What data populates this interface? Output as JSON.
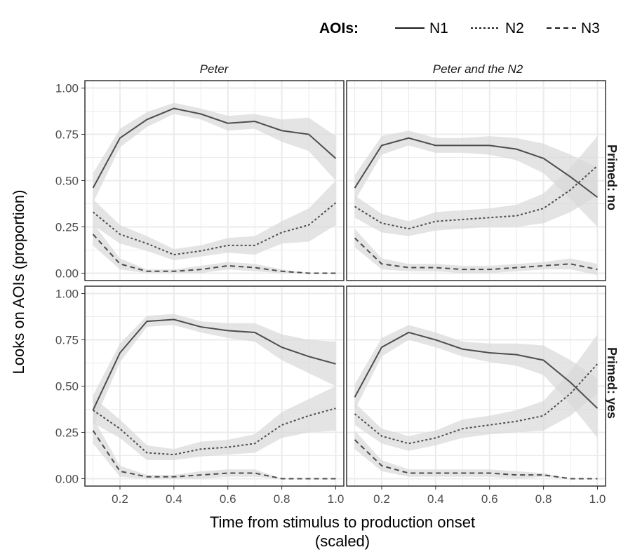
{
  "chart_data": {
    "type": "line",
    "facet_columns": [
      "Peter",
      "Peter and the N2"
    ],
    "facet_rows": [
      "Primed: no",
      "Primed: yes"
    ],
    "xlabel_lines": [
      "Time from stimulus to production onset",
      "(scaled)"
    ],
    "ylabel": "Looks on AOIs (proportion)",
    "x_ticks": [
      "0.2",
      "0.4",
      "0.6",
      "0.8",
      "1.0"
    ],
    "y_ticks": [
      "0.00",
      "0.25",
      "0.50",
      "0.75",
      "1.00"
    ],
    "xlim": [
      0.07,
      1.03
    ],
    "ylim": [
      -0.04,
      1.04
    ],
    "grid": true,
    "legend": {
      "title": "AOIs:",
      "placement": "top-right",
      "entries": [
        {
          "name": "N1",
          "dash": "solid"
        },
        {
          "name": "N2",
          "dash": "dotted"
        },
        {
          "name": "N3",
          "dash": "dashed"
        }
      ]
    },
    "colors": {
      "line": "#4d4d4d",
      "ribbon": "#d9d9d9",
      "grid": "#ebebeb",
      "panel_border": "#333333"
    },
    "x": [
      0.1,
      0.2,
      0.3,
      0.4,
      0.5,
      0.6,
      0.7,
      0.8,
      0.9,
      1.0
    ],
    "panels": [
      {
        "row": 0,
        "col": 0,
        "series": [
          {
            "name": "N1",
            "values": [
              0.46,
              0.73,
              0.83,
              0.89,
              0.86,
              0.81,
              0.82,
              0.77,
              0.75,
              0.62
            ],
            "ci": [
              0.08,
              0.05,
              0.04,
              0.03,
              0.03,
              0.04,
              0.04,
              0.06,
              0.09,
              0.12
            ]
          },
          {
            "name": "N2",
            "values": [
              0.33,
              0.21,
              0.16,
              0.1,
              0.12,
              0.15,
              0.15,
              0.22,
              0.26,
              0.38
            ],
            "ci": [
              0.07,
              0.05,
              0.04,
              0.03,
              0.03,
              0.04,
              0.05,
              0.06,
              0.09,
              0.12
            ]
          },
          {
            "name": "N3",
            "values": [
              0.21,
              0.05,
              0.01,
              0.01,
              0.02,
              0.04,
              0.03,
              0.01,
              0.0,
              0.0
            ],
            "ci": [
              0.06,
              0.03,
              0.01,
              0.01,
              0.02,
              0.02,
              0.02,
              0.01,
              0.0,
              0.0
            ]
          }
        ]
      },
      {
        "row": 0,
        "col": 1,
        "series": [
          {
            "name": "N1",
            "values": [
              0.46,
              0.69,
              0.73,
              0.69,
              0.69,
              0.69,
              0.67,
              0.62,
              0.52,
              0.41
            ],
            "ci": [
              0.07,
              0.05,
              0.04,
              0.04,
              0.04,
              0.05,
              0.06,
              0.08,
              0.12,
              0.16
            ]
          },
          {
            "name": "N2",
            "values": [
              0.36,
              0.27,
              0.24,
              0.28,
              0.29,
              0.3,
              0.31,
              0.35,
              0.45,
              0.58
            ],
            "ci": [
              0.06,
              0.05,
              0.04,
              0.05,
              0.05,
              0.05,
              0.06,
              0.08,
              0.12,
              0.16
            ]
          },
          {
            "name": "N3",
            "values": [
              0.19,
              0.05,
              0.03,
              0.03,
              0.02,
              0.02,
              0.03,
              0.04,
              0.05,
              0.02
            ],
            "ci": [
              0.05,
              0.03,
              0.02,
              0.02,
              0.02,
              0.02,
              0.02,
              0.02,
              0.03,
              0.03
            ]
          }
        ]
      },
      {
        "row": 1,
        "col": 0,
        "series": [
          {
            "name": "N1",
            "values": [
              0.37,
              0.68,
              0.85,
              0.86,
              0.82,
              0.8,
              0.79,
              0.71,
              0.66,
              0.62
            ],
            "ci": [
              0.08,
              0.05,
              0.03,
              0.03,
              0.03,
              0.04,
              0.05,
              0.07,
              0.09,
              0.12
            ]
          },
          {
            "name": "N2",
            "values": [
              0.37,
              0.27,
              0.14,
              0.13,
              0.16,
              0.17,
              0.19,
              0.29,
              0.34,
              0.38
            ],
            "ci": [
              0.07,
              0.05,
              0.04,
              0.03,
              0.04,
              0.04,
              0.05,
              0.07,
              0.09,
              0.12
            ]
          },
          {
            "name": "N3",
            "values": [
              0.26,
              0.04,
              0.01,
              0.01,
              0.02,
              0.03,
              0.03,
              0.0,
              0.0,
              0.0
            ],
            "ci": [
              0.07,
              0.03,
              0.01,
              0.01,
              0.02,
              0.02,
              0.02,
              0.0,
              0.0,
              0.0
            ]
          }
        ]
      },
      {
        "row": 1,
        "col": 1,
        "series": [
          {
            "name": "N1",
            "values": [
              0.44,
              0.71,
              0.79,
              0.75,
              0.7,
              0.68,
              0.67,
              0.64,
              0.52,
              0.38
            ],
            "ci": [
              0.07,
              0.05,
              0.04,
              0.04,
              0.04,
              0.05,
              0.06,
              0.08,
              0.12,
              0.16
            ]
          },
          {
            "name": "N2",
            "values": [
              0.35,
              0.23,
              0.19,
              0.22,
              0.27,
              0.29,
              0.31,
              0.34,
              0.46,
              0.62
            ],
            "ci": [
              0.06,
              0.04,
              0.04,
              0.04,
              0.05,
              0.05,
              0.06,
              0.08,
              0.12,
              0.16
            ]
          },
          {
            "name": "N3",
            "values": [
              0.21,
              0.07,
              0.03,
              0.03,
              0.03,
              0.03,
              0.02,
              0.02,
              0.0,
              0.0
            ],
            "ci": [
              0.05,
              0.03,
              0.02,
              0.02,
              0.02,
              0.02,
              0.02,
              0.01,
              0.0,
              0.0
            ]
          }
        ]
      }
    ]
  }
}
